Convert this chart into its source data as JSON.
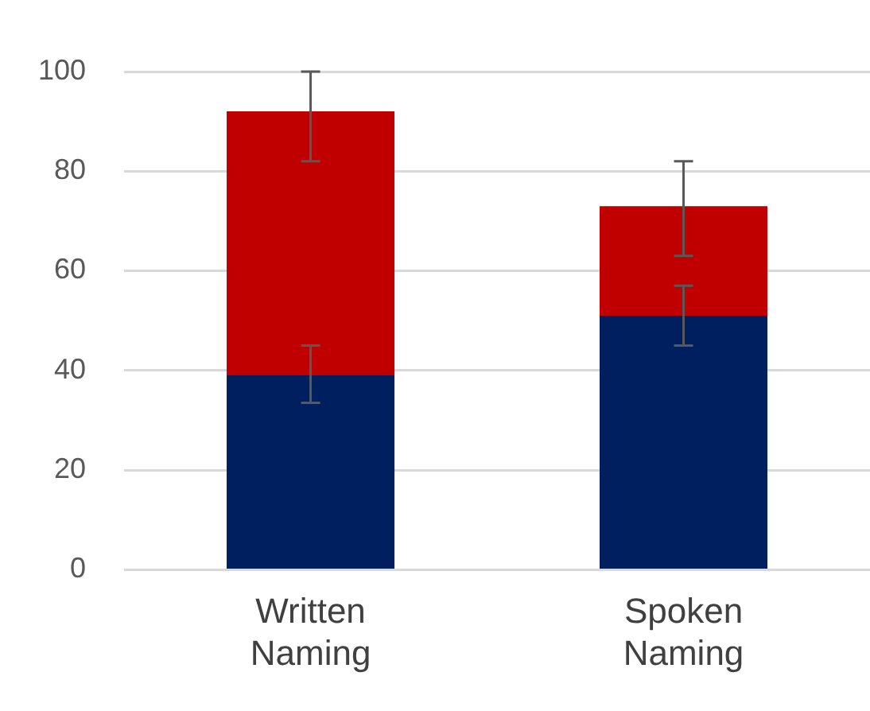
{
  "chart_data": {
    "type": "bar",
    "stacked": true,
    "categories": [
      "Written Naming",
      "Spoken Naming"
    ],
    "series": [
      {
        "color": "#001f5f",
        "values": [
          39,
          51
        ],
        "errors": [
          [
            33.5,
            45
          ],
          [
            45,
            57
          ]
        ]
      },
      {
        "color": "#c00000",
        "values": [
          53,
          22
        ],
        "errors": [
          [
            82,
            100
          ],
          [
            63,
            82
          ]
        ]
      }
    ],
    "ylim": [
      0,
      100
    ],
    "yticks": [
      0,
      20,
      40,
      60,
      80,
      100
    ],
    "grid": "y",
    "legend": false
  }
}
